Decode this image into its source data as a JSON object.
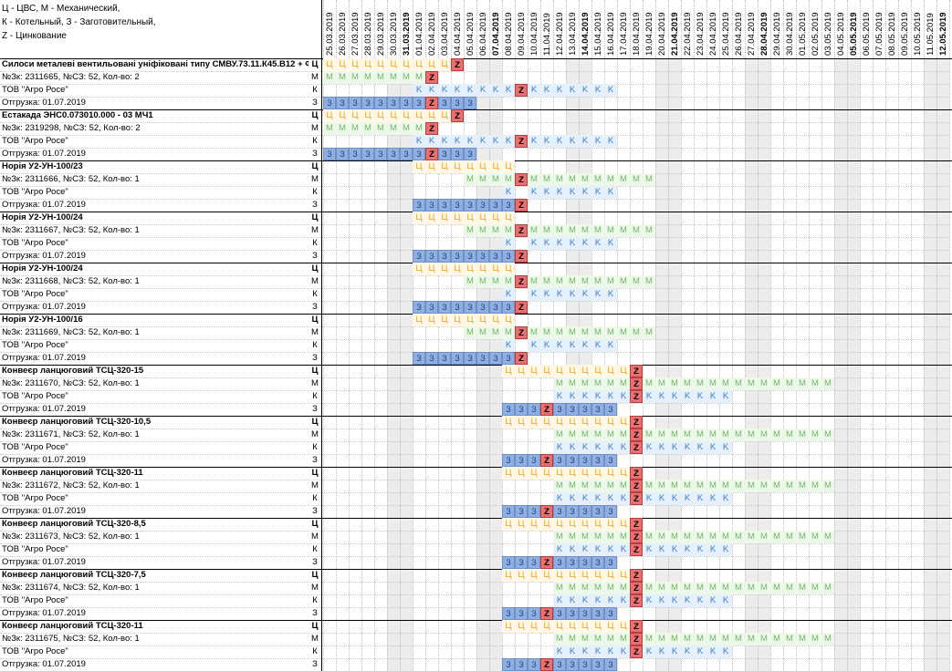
{
  "legend": [
    "Ц - ЦВС, М - Механический,",
    "К - Котельный, З - Заготовительный,",
    "Z - Цинкование"
  ],
  "dates": [
    "25.03.2019",
    "26.03.2019",
    "27.03.2019",
    "28.03.2019",
    "29.03.2019",
    "30.03.2019",
    "31.03.2019",
    "01.04.2019",
    "02.04.2019",
    "03.04.2019",
    "04.04.2019",
    "05.04.2019",
    "06.04.2019",
    "07.04.2019",
    "08.04.2019",
    "09.04.2019",
    "10.04.2019",
    "11.04.2019",
    "12.04.2019",
    "13.04.2019",
    "14.04.2019",
    "15.04.2019",
    "16.04.2019",
    "17.04.2019",
    "18.04.2019",
    "19.04.2019",
    "20.04.2019",
    "21.04.2019",
    "22.04.2019",
    "23.04.2019",
    "24.04.2019",
    "25.04.2019",
    "26.04.2019",
    "27.04.2019",
    "28.04.2019",
    "29.04.2019",
    "30.04.2019",
    "01.05.2019",
    "02.05.2019",
    "03.05.2019",
    "04.05.2019",
    "05.05.2019",
    "06.05.2019",
    "07.05.2019",
    "08.05.2019",
    "09.05.2019",
    "10.05.2019",
    "11.05.2019",
    "12.05.2019"
  ],
  "bold_dates": [
    6,
    13,
    20,
    27,
    34,
    41,
    48
  ],
  "weekend_cols": [
    5,
    6,
    12,
    13,
    19,
    20,
    26,
    27,
    33,
    34,
    40,
    41,
    47,
    48
  ],
  "shop_codes": [
    "Ц",
    "М",
    "К",
    "З"
  ],
  "marks": {
    "C": "Ц",
    "M": "M",
    "K": "K",
    "Z3": "3",
    "Z": "Z"
  },
  "orders": [
    {
      "title": "Силоси металеві вентильовані уніфіковані типу СМВУ.73.11.К45.В12 + Ф28",
      "order": "№Зк: 2311665, №СЗ: 52, Кол-во: 2",
      "client": "ТОВ \"Агро Росе\"",
      "ship": "Отгрузка: 01.07.2019",
      "rows": [
        [
          [
            "C",
            0,
            9
          ],
          [
            "Z",
            10,
            10
          ]
        ],
        [
          [
            "M",
            0,
            7
          ],
          [
            "Z",
            8,
            8
          ]
        ],
        [
          [
            "K",
            7,
            14
          ],
          [
            "Z",
            15,
            15
          ],
          [
            "K",
            16,
            22
          ]
        ],
        [
          [
            "Z3",
            0,
            7
          ],
          [
            "Z",
            8,
            8
          ],
          [
            "Z3",
            9,
            11
          ]
        ]
      ]
    },
    {
      "title": "Естакада ЭНС0.073010.000 - 03 МЧ1",
      "order": "№Зк: 2319298, №СЗ: 52, Кол-во: 2",
      "client": "ТОВ \"Агро Росе\"",
      "ship": "Отгрузка: 01.07.2019",
      "rows": [
        [
          [
            "C",
            0,
            9
          ],
          [
            "Z",
            10,
            10
          ]
        ],
        [
          [
            "M",
            0,
            7
          ],
          [
            "Z",
            8,
            8
          ]
        ],
        [
          [
            "K",
            7,
            14
          ],
          [
            "Z",
            15,
            15
          ],
          [
            "K",
            16,
            22
          ]
        ],
        [
          [
            "Z3",
            0,
            7
          ],
          [
            "Z",
            8,
            8
          ],
          [
            "Z3",
            9,
            11
          ]
        ]
      ]
    },
    {
      "title": "Норія У2-УН-100/23",
      "order": "№Зк: 2311666, №СЗ: 52, Кол-во: 1",
      "client": "ТОВ \"Агро Росе\"",
      "ship": "Отгрузка: 01.07.2019",
      "rows": [
        [
          [
            "C",
            7,
            14
          ]
        ],
        [
          [
            "M",
            11,
            14
          ],
          [
            "Z",
            15,
            15
          ],
          [
            "M",
            16,
            25
          ]
        ],
        [
          [
            "K",
            14,
            14
          ],
          [
            "K",
            16,
            22
          ]
        ],
        [
          [
            "Z3",
            7,
            14
          ],
          [
            "Z",
            15,
            15
          ]
        ]
      ]
    },
    {
      "title": "Норія У2-УН-100/24",
      "order": "№Зк: 2311667, №СЗ: 52, Кол-во: 1",
      "client": "ТОВ \"Агро Росе\"",
      "ship": "Отгрузка: 01.07.2019",
      "rows": [
        [
          [
            "C",
            7,
            14
          ]
        ],
        [
          [
            "M",
            11,
            14
          ],
          [
            "Z",
            15,
            15
          ],
          [
            "M",
            16,
            25
          ]
        ],
        [
          [
            "K",
            14,
            14
          ],
          [
            "K",
            16,
            22
          ]
        ],
        [
          [
            "Z3",
            7,
            14
          ],
          [
            "Z",
            15,
            15
          ]
        ]
      ]
    },
    {
      "title": "Норія У2-УН-100/24",
      "order": "№Зк: 2311668, №СЗ: 52, Кол-во: 1",
      "client": "ТОВ \"Агро Росе\"",
      "ship": "Отгрузка: 01.07.2019",
      "rows": [
        [
          [
            "C",
            7,
            14
          ]
        ],
        [
          [
            "M",
            11,
            14
          ],
          [
            "Z",
            15,
            15
          ],
          [
            "M",
            16,
            25
          ]
        ],
        [
          [
            "K",
            14,
            14
          ],
          [
            "K",
            16,
            22
          ]
        ],
        [
          [
            "Z3",
            7,
            14
          ],
          [
            "Z",
            15,
            15
          ]
        ]
      ]
    },
    {
      "title": "Норія У2-УН-100/16",
      "order": "№Зк: 2311669, №СЗ: 52, Кол-во: 1",
      "client": "ТОВ \"Агро Росе\"",
      "ship": "Отгрузка: 01.07.2019",
      "rows": [
        [
          [
            "C",
            7,
            14
          ]
        ],
        [
          [
            "M",
            11,
            14
          ],
          [
            "Z",
            15,
            15
          ],
          [
            "M",
            16,
            25
          ]
        ],
        [
          [
            "K",
            14,
            14
          ],
          [
            "K",
            16,
            22
          ]
        ],
        [
          [
            "Z3",
            7,
            14
          ],
          [
            "Z",
            15,
            15
          ]
        ]
      ]
    },
    {
      "title": "Конвеєр ланцюговий ТСЦ-320-15",
      "order": "№Зк: 2311670, №СЗ: 52, Кол-во: 1",
      "client": "ТОВ \"Агро Росе\"",
      "ship": "Отгрузка: 01.07.2019",
      "rows": [
        [
          [
            "C",
            14,
            23
          ],
          [
            "Z",
            24,
            24
          ]
        ],
        [
          [
            "M",
            18,
            23
          ],
          [
            "Z",
            24,
            24
          ],
          [
            "M",
            25,
            39
          ]
        ],
        [
          [
            "K",
            18,
            23
          ],
          [
            "Z",
            24,
            24
          ],
          [
            "K",
            25,
            31
          ]
        ],
        [
          [
            "Z3",
            14,
            16
          ],
          [
            "Z",
            17,
            17
          ],
          [
            "Z3",
            18,
            22
          ]
        ]
      ]
    },
    {
      "title": "Конвеєр ланцюговий ТСЦ-320-10,5",
      "order": "№Зк: 2311671, №СЗ: 52, Кол-во: 1",
      "client": "ТОВ \"Агро Росе\"",
      "ship": "Отгрузка: 01.07.2019",
      "rows": [
        [
          [
            "C",
            14,
            23
          ],
          [
            "Z",
            24,
            24
          ]
        ],
        [
          [
            "M",
            18,
            23
          ],
          [
            "Z",
            24,
            24
          ],
          [
            "M",
            25,
            39
          ]
        ],
        [
          [
            "K",
            18,
            23
          ],
          [
            "Z",
            24,
            24
          ],
          [
            "K",
            25,
            31
          ]
        ],
        [
          [
            "Z3",
            14,
            16
          ],
          [
            "Z",
            17,
            17
          ],
          [
            "Z3",
            18,
            22
          ]
        ]
      ]
    },
    {
      "title": "Конвеєр ланцюговий ТСЦ-320-11",
      "order": "№Зк: 2311672, №СЗ: 52, Кол-во: 1",
      "client": "ТОВ \"Агро Росе\"",
      "ship": "Отгрузка: 01.07.2019",
      "rows": [
        [
          [
            "C",
            14,
            23
          ],
          [
            "Z",
            24,
            24
          ]
        ],
        [
          [
            "M",
            18,
            23
          ],
          [
            "Z",
            24,
            24
          ],
          [
            "M",
            25,
            39
          ]
        ],
        [
          [
            "K",
            18,
            23
          ],
          [
            "Z",
            24,
            24
          ],
          [
            "K",
            25,
            31
          ]
        ],
        [
          [
            "Z3",
            14,
            16
          ],
          [
            "Z",
            17,
            17
          ],
          [
            "Z3",
            18,
            22
          ]
        ]
      ]
    },
    {
      "title": "Конвеєр ланцюговий ТСЦ-320-8,5",
      "order": "№Зк: 2311673, №СЗ: 52, Кол-во: 1",
      "client": "ТОВ \"Агро Росе\"",
      "ship": "Отгрузка: 01.07.2019",
      "rows": [
        [
          [
            "C",
            14,
            23
          ],
          [
            "Z",
            24,
            24
          ]
        ],
        [
          [
            "M",
            18,
            23
          ],
          [
            "Z",
            24,
            24
          ],
          [
            "M",
            25,
            39
          ]
        ],
        [
          [
            "K",
            18,
            23
          ],
          [
            "Z",
            24,
            24
          ],
          [
            "K",
            25,
            31
          ]
        ],
        [
          [
            "Z3",
            14,
            16
          ],
          [
            "Z",
            17,
            17
          ],
          [
            "Z3",
            18,
            22
          ]
        ]
      ]
    },
    {
      "title": "Конвеєр ланцюговий ТСЦ-320-7,5",
      "order": "№Зк: 2311674, №СЗ: 52, Кол-во: 1",
      "client": "ТОВ \"Агро Росе\"",
      "ship": "Отгрузка: 01.07.2019",
      "rows": [
        [
          [
            "C",
            14,
            23
          ],
          [
            "Z",
            24,
            24
          ]
        ],
        [
          [
            "M",
            18,
            23
          ],
          [
            "Z",
            24,
            24
          ],
          [
            "M",
            25,
            39
          ]
        ],
        [
          [
            "K",
            18,
            23
          ],
          [
            "Z",
            24,
            24
          ],
          [
            "K",
            25,
            31
          ]
        ],
        [
          [
            "Z3",
            14,
            16
          ],
          [
            "Z",
            17,
            17
          ],
          [
            "Z3",
            18,
            22
          ]
        ]
      ]
    },
    {
      "title": "Конвеєр ланцюговий ТСЦ-320-11",
      "order": "№Зк: 2311675, №СЗ: 52, Кол-во: 1",
      "client": "ТОВ \"Агро Росе\"",
      "ship": "Отгрузка: 01.07.2019",
      "rows": [
        [
          [
            "C",
            14,
            23
          ],
          [
            "Z",
            24,
            24
          ]
        ],
        [
          [
            "M",
            18,
            23
          ],
          [
            "Z",
            24,
            24
          ],
          [
            "M",
            25,
            39
          ]
        ],
        [
          [
            "K",
            18,
            23
          ],
          [
            "Z",
            24,
            24
          ],
          [
            "K",
            25,
            31
          ]
        ],
        [
          [
            "Z3",
            14,
            16
          ],
          [
            "Z",
            17,
            17
          ],
          [
            "Z3",
            18,
            22
          ]
        ]
      ]
    }
  ]
}
